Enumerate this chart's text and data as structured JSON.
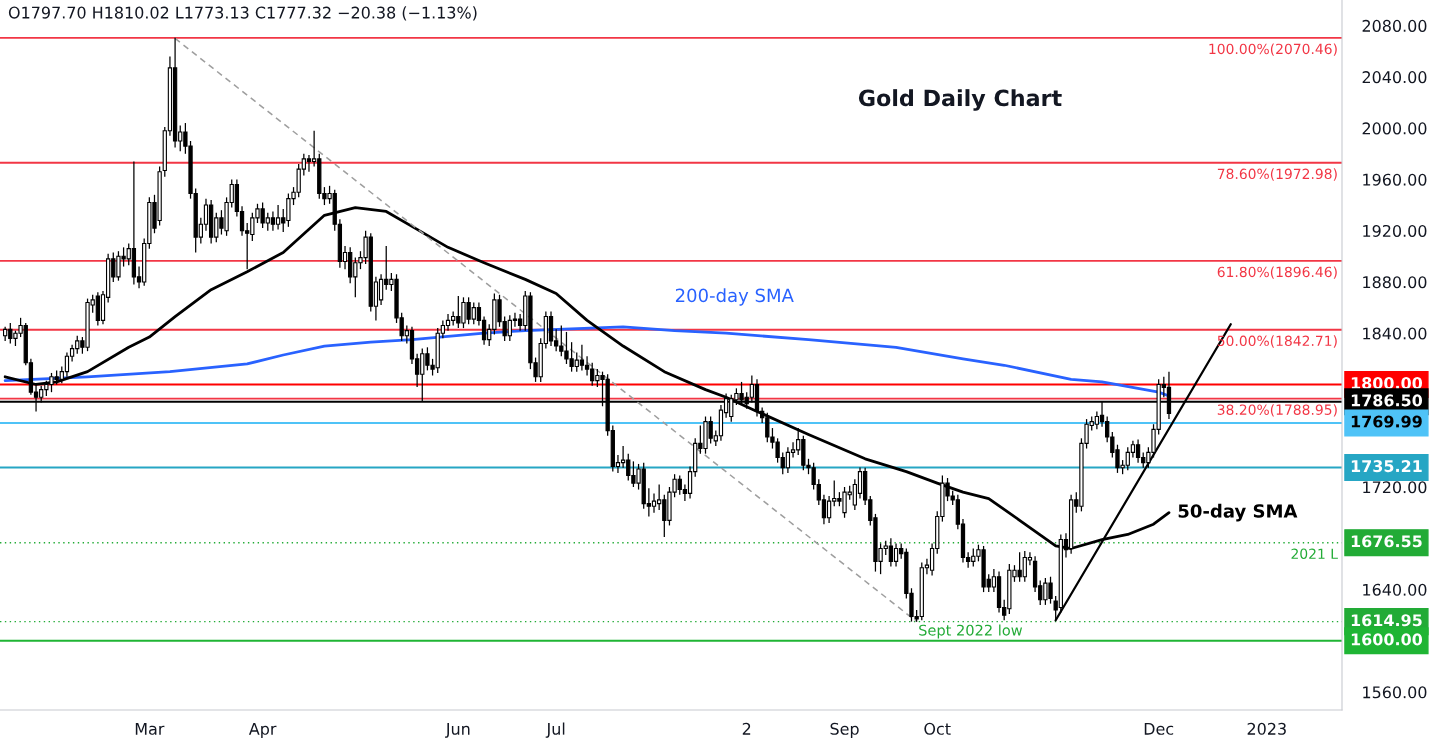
{
  "chart_data": {
    "type": "candlestick",
    "title": "Gold Daily Chart",
    "subtitle": "O1797.70 H1810.02 L1773.13 C1777.32 −20.38 (−1.13%)",
    "categories": [
      null,
      null,
      null,
      null,
      null,
      null,
      null,
      null,
      null,
      null,
      null,
      null,
      null,
      null,
      null,
      null,
      null,
      null,
      null,
      null,
      null,
      null,
      null,
      null,
      null,
      null,
      null,
      null,
      "Mar",
      null,
      null,
      null,
      null,
      null,
      null,
      null,
      null,
      null,
      null,
      null,
      null,
      null,
      null,
      null,
      null,
      null,
      null,
      null,
      null,
      null,
      "Apr",
      null,
      null,
      null,
      null,
      null,
      null,
      null,
      null,
      null,
      null,
      null,
      null,
      null,
      null,
      null,
      null,
      null,
      null,
      null,
      null,
      null,
      null,
      null,
      null,
      null,
      null,
      null,
      null,
      null,
      null,
      null,
      null,
      null,
      null,
      null,
      null,
      null,
      "Jun",
      null,
      null,
      null,
      null,
      null,
      null,
      null,
      null,
      null,
      null,
      null,
      null,
      null,
      null,
      null,
      null,
      null,
      null,
      "Jul",
      null,
      null,
      null,
      null,
      null,
      null,
      null,
      null,
      null,
      null,
      null,
      null,
      null,
      null,
      null,
      null,
      null,
      null,
      null,
      null,
      null,
      null,
      null,
      null,
      null,
      null,
      null,
      null,
      null,
      null,
      null,
      null,
      null,
      null,
      null,
      null,
      "2",
      null,
      null,
      null,
      null,
      null,
      null,
      null,
      null,
      null,
      null,
      null,
      null,
      null,
      null,
      null,
      null,
      null,
      null,
      "Sep",
      null,
      null,
      null,
      null,
      null,
      null,
      null,
      null,
      null,
      null,
      null,
      null,
      null,
      null,
      null,
      null,
      null,
      "Oct",
      null,
      null,
      null,
      null,
      null,
      null,
      null,
      null,
      null,
      null,
      null,
      null,
      null,
      null,
      null,
      null,
      null,
      null,
      null,
      null,
      null,
      null,
      null,
      null,
      null,
      null,
      null,
      null,
      null,
      null,
      null,
      null,
      null,
      null,
      null,
      null,
      null,
      null,
      null,
      null,
      null,
      null,
      "Dec",
      null,
      null,
      null,
      null,
      null,
      null,
      null,
      null,
      null,
      null,
      null,
      null,
      null,
      null,
      null,
      null,
      null,
      null,
      null,
      null,
      "2023",
      null,
      null,
      null,
      null,
      null,
      null,
      null,
      null,
      null,
      null,
      null,
      null,
      null,
      null
    ],
    "ohlc": [
      [
        1838,
        1845,
        1834,
        1843
      ],
      [
        1843,
        1848,
        1832,
        1836
      ],
      [
        1836,
        1842,
        1830,
        1840
      ],
      [
        1840,
        1852,
        1837,
        1846
      ],
      [
        1846,
        1848,
        1815,
        1817
      ],
      [
        1817,
        1820,
        1792,
        1794
      ],
      [
        1794,
        1800,
        1779,
        1790
      ],
      [
        1790,
        1799,
        1786,
        1796
      ],
      [
        1796,
        1803,
        1791,
        1800
      ],
      [
        1800,
        1809,
        1794,
        1806
      ],
      [
        1806,
        1811,
        1800,
        1804
      ],
      [
        1804,
        1814,
        1801,
        1810
      ],
      [
        1810,
        1825,
        1806,
        1822
      ],
      [
        1822,
        1831,
        1818,
        1828
      ],
      [
        1828,
        1838,
        1824,
        1834
      ],
      [
        1834,
        1837,
        1824,
        1829
      ],
      [
        1829,
        1867,
        1826,
        1864
      ],
      [
        1862,
        1870,
        1856,
        1866
      ],
      [
        1869,
        1872,
        1846,
        1850
      ],
      [
        1850,
        1873,
        1847,
        1870
      ],
      [
        1868,
        1902,
        1864,
        1898
      ],
      [
        1898,
        1903,
        1880,
        1884
      ],
      [
        1884,
        1904,
        1881,
        1900
      ],
      [
        1900,
        1907,
        1892,
        1898
      ],
      [
        1898,
        1910,
        1893,
        1906
      ],
      [
        1906,
        1974,
        1878,
        1884
      ],
      [
        1884,
        1892,
        1875,
        1880
      ],
      [
        1880,
        1914,
        1877,
        1910
      ],
      [
        1910,
        1946,
        1906,
        1942
      ],
      [
        1942,
        1948,
        1918,
        1922
      ],
      [
        1928,
        1970,
        1924,
        1966
      ],
      [
        1967,
        2001,
        1962,
        1998
      ],
      [
        1998,
        2056,
        1994,
        2047
      ],
      [
        2047,
        2070.46,
        1985,
        1990
      ],
      [
        1990,
        2002,
        1982,
        1997
      ],
      [
        1997,
        2004,
        1980,
        1986
      ],
      [
        1986,
        1990,
        1945,
        1949
      ],
      [
        1949,
        1953,
        1903,
        1915
      ],
      [
        1915,
        1930,
        1910,
        1925
      ],
      [
        1925,
        1945,
        1920,
        1940
      ],
      [
        1940,
        1944,
        1910,
        1915
      ],
      [
        1915,
        1934,
        1911,
        1930
      ],
      [
        1930,
        1936,
        1917,
        1922
      ],
      [
        1920,
        1946,
        1916,
        1942
      ],
      [
        1942,
        1960,
        1938,
        1956
      ],
      [
        1956,
        1960,
        1931,
        1935
      ],
      [
        1935,
        1939,
        1916,
        1920
      ],
      [
        1920,
        1926,
        1890,
        1918
      ],
      [
        1917,
        1934,
        1912,
        1930
      ],
      [
        1930,
        1941,
        1926,
        1937
      ],
      [
        1937,
        1942,
        1922,
        1926
      ],
      [
        1926,
        1934,
        1920,
        1930
      ],
      [
        1930,
        1935,
        1920,
        1925
      ],
      [
        1925,
        1940,
        1921,
        1930
      ],
      [
        1930,
        1937,
        1919,
        1926
      ],
      [
        1928,
        1949,
        1923,
        1945
      ],
      [
        1945,
        1954,
        1940,
        1950
      ],
      [
        1950,
        1972,
        1946,
        1968
      ],
      [
        1968,
        1980,
        1963,
        1976
      ],
      [
        1976,
        1979,
        1966,
        1974
      ],
      [
        1974,
        1998,
        1970,
        1976
      ],
      [
        1976,
        1980,
        1945,
        1949
      ],
      [
        1949,
        1954,
        1940,
        1945
      ],
      [
        1945,
        1955,
        1941,
        1949
      ],
      [
        1949,
        1952,
        1920,
        1925
      ],
      [
        1925,
        1929,
        1891,
        1896
      ],
      [
        1896,
        1908,
        1890,
        1903
      ],
      [
        1903,
        1907,
        1879,
        1884
      ],
      [
        1884,
        1899,
        1868,
        1895
      ],
      [
        1895,
        1904,
        1890,
        1899
      ],
      [
        1899,
        1920,
        1894,
        1915
      ],
      [
        1915,
        1918,
        1857,
        1861
      ],
      [
        1861,
        1884,
        1850,
        1880
      ],
      [
        1866,
        1886,
        1862,
        1882
      ],
      [
        1882,
        1908,
        1874,
        1878
      ],
      [
        1878,
        1887,
        1873,
        1882
      ],
      [
        1882,
        1886,
        1848,
        1852
      ],
      [
        1852,
        1856,
        1834,
        1838
      ],
      [
        1838,
        1846,
        1832,
        1842
      ],
      [
        1842,
        1845,
        1816,
        1820
      ],
      [
        1820,
        1824,
        1798,
        1808
      ],
      [
        1808,
        1828,
        1787,
        1824
      ],
      [
        1824,
        1829,
        1811,
        1815
      ],
      [
        1815,
        1820,
        1807,
        1812
      ],
      [
        1813,
        1844,
        1809,
        1840
      ],
      [
        1840,
        1850,
        1836,
        1846
      ],
      [
        1846,
        1855,
        1842,
        1850
      ],
      [
        1850,
        1857,
        1846,
        1853
      ],
      [
        1853,
        1869,
        1844,
        1848
      ],
      [
        1848,
        1868,
        1844,
        1864
      ],
      [
        1864,
        1868,
        1847,
        1851
      ],
      [
        1851,
        1864,
        1847,
        1860
      ],
      [
        1860,
        1864,
        1846,
        1850
      ],
      [
        1850,
        1853,
        1831,
        1835
      ],
      [
        1835,
        1847,
        1830,
        1843
      ],
      [
        1843,
        1871,
        1839,
        1866
      ],
      [
        1866,
        1870,
        1845,
        1849
      ],
      [
        1849,
        1853,
        1834,
        1838
      ],
      [
        1838,
        1854,
        1834,
        1850
      ],
      [
        1850,
        1856,
        1845,
        1851
      ],
      [
        1851,
        1855,
        1842,
        1846
      ],
      [
        1846,
        1873,
        1842,
        1869
      ],
      [
        1869,
        1872,
        1812,
        1817
      ],
      [
        1817,
        1821,
        1802,
        1806
      ],
      [
        1806,
        1836,
        1802,
        1832
      ],
      [
        1832,
        1857,
        1828,
        1853
      ],
      [
        1853,
        1857,
        1830,
        1834
      ],
      [
        1834,
        1843,
        1826,
        1830
      ],
      [
        1830,
        1846,
        1822,
        1826
      ],
      [
        1826,
        1841,
        1816,
        1820
      ],
      [
        1820,
        1833,
        1810,
        1814
      ],
      [
        1814,
        1825,
        1810,
        1819
      ],
      [
        1819,
        1831,
        1811,
        1815
      ],
      [
        1815,
        1822,
        1807,
        1812
      ],
      [
        1812,
        1817,
        1799,
        1803
      ],
      [
        1803,
        1812,
        1798,
        1807
      ],
      [
        1807,
        1810,
        1783,
        1804
      ],
      [
        1804,
        1808,
        1760,
        1764
      ],
      [
        1764,
        1768,
        1732,
        1736
      ],
      [
        1736,
        1745,
        1731,
        1739
      ],
      [
        1739,
        1752,
        1735,
        1741
      ],
      [
        1741,
        1746,
        1725,
        1729
      ],
      [
        1729,
        1740,
        1720,
        1723
      ],
      [
        1723,
        1738,
        1718,
        1734
      ],
      [
        1734,
        1739,
        1703,
        1707
      ],
      [
        1707,
        1719,
        1697,
        1705
      ],
      [
        1705,
        1715,
        1700,
        1709
      ],
      [
        1707,
        1722,
        1702,
        1710
      ],
      [
        1710,
        1714,
        1681,
        1694
      ],
      [
        1694,
        1720,
        1690,
        1716
      ],
      [
        1716,
        1730,
        1712,
        1726
      ],
      [
        1726,
        1729,
        1714,
        1718
      ],
      [
        1718,
        1722,
        1709,
        1715
      ],
      [
        1715,
        1736,
        1711,
        1732
      ],
      [
        1732,
        1758,
        1728,
        1754
      ],
      [
        1754,
        1768,
        1746,
        1750
      ],
      [
        1750,
        1775,
        1746,
        1771
      ],
      [
        1771,
        1775,
        1754,
        1758
      ],
      [
        1756,
        1764,
        1752,
        1760
      ],
      [
        1760,
        1784,
        1756,
        1780
      ],
      [
        1778,
        1793,
        1774,
        1789
      ],
      [
        1775,
        1792,
        1771,
        1789
      ],
      [
        1788,
        1797,
        1784,
        1793
      ],
      [
        1793,
        1802,
        1784,
        1788
      ],
      [
        1790,
        1794,
        1781,
        1785
      ],
      [
        1790,
        1807,
        1786,
        1800
      ],
      [
        1800,
        1804,
        1775,
        1779
      ],
      [
        1779,
        1782,
        1770,
        1774
      ],
      [
        1774,
        1778,
        1755,
        1759
      ],
      [
        1759,
        1766,
        1750,
        1755
      ],
      [
        1755,
        1758,
        1739,
        1743
      ],
      [
        1743,
        1747,
        1730,
        1735
      ],
      [
        1735,
        1751,
        1731,
        1747
      ],
      [
        1747,
        1755,
        1743,
        1749
      ],
      [
        1749,
        1766,
        1745,
        1757
      ],
      [
        1757,
        1760,
        1733,
        1737
      ],
      [
        1737,
        1742,
        1730,
        1735
      ],
      [
        1735,
        1739,
        1718,
        1722
      ],
      [
        1722,
        1726,
        1706,
        1710
      ],
      [
        1710,
        1714,
        1691,
        1696
      ],
      [
        1696,
        1713,
        1692,
        1709
      ],
      [
        1709,
        1725,
        1705,
        1711
      ],
      [
        1711,
        1716,
        1705,
        1709
      ],
      [
        1700,
        1720,
        1696,
        1716
      ],
      [
        1714,
        1721,
        1710,
        1716
      ],
      [
        1706,
        1726,
        1702,
        1722
      ],
      [
        1715,
        1735.21,
        1711,
        1732
      ],
      [
        1732,
        1735,
        1706,
        1710
      ],
      [
        1710,
        1713,
        1690,
        1694
      ],
      [
        1696,
        1699,
        1654,
        1662
      ],
      [
        1662,
        1676,
        1652,
        1672
      ],
      [
        1672,
        1678,
        1667,
        1674
      ],
      [
        1674,
        1680,
        1658,
        1662
      ],
      [
        1662,
        1676,
        1658,
        1672
      ],
      [
        1672,
        1676,
        1664,
        1668
      ],
      [
        1669,
        1672,
        1633,
        1637
      ],
      [
        1637,
        1641,
        1615,
        1619
      ],
      [
        1619,
        1624,
        1614.95,
        1617
      ],
      [
        1619,
        1661,
        1616,
        1657
      ],
      [
        1657,
        1664,
        1652,
        1659
      ],
      [
        1655,
        1676,
        1651,
        1672
      ],
      [
        1672,
        1701,
        1668,
        1697
      ],
      [
        1697,
        1729,
        1693,
        1723
      ],
      [
        1723,
        1727,
        1709,
        1713
      ],
      [
        1713,
        1717,
        1706,
        1710
      ],
      [
        1710,
        1714,
        1687,
        1691
      ],
      [
        1691,
        1695,
        1661,
        1665
      ],
      [
        1665,
        1669,
        1657,
        1662
      ],
      [
        1662,
        1672,
        1658,
        1666
      ],
      [
        1666,
        1675,
        1662,
        1671
      ],
      [
        1671,
        1674,
        1638,
        1642
      ],
      [
        1648,
        1652,
        1638,
        1642
      ],
      [
        1642,
        1656,
        1638,
        1650
      ],
      [
        1650,
        1654,
        1622,
        1626
      ],
      [
        1626,
        1632,
        1616,
        1620
      ],
      [
        1625,
        1660,
        1621,
        1655
      ],
      [
        1650,
        1659,
        1646,
        1655
      ],
      [
        1655,
        1669,
        1646,
        1650
      ],
      [
        1650,
        1670,
        1646,
        1665
      ],
      [
        1663,
        1669,
        1659,
        1665
      ],
      [
        1662,
        1666,
        1638,
        1642
      ],
      [
        1643,
        1647,
        1628,
        1632
      ],
      [
        1632,
        1649,
        1628,
        1645
      ],
      [
        1645,
        1650,
        1629,
        1633
      ],
      [
        1631,
        1635,
        1617,
        1624
      ],
      [
        1626,
        1683,
        1622,
        1679
      ],
      [
        1679,
        1684,
        1665,
        1671
      ],
      [
        1672,
        1714,
        1668,
        1710
      ],
      [
        1710,
        1716,
        1700,
        1705
      ],
      [
        1705,
        1758,
        1701,
        1754
      ],
      [
        1754,
        1773,
        1750,
        1769
      ],
      [
        1768,
        1775,
        1764,
        1771
      ],
      [
        1769,
        1779,
        1765,
        1775
      ],
      [
        1776,
        1786.5,
        1767,
        1771
      ],
      [
        1771,
        1775,
        1755,
        1759
      ],
      [
        1759,
        1763,
        1743,
        1747
      ],
      [
        1749,
        1753,
        1731,
        1735
      ],
      [
        1735,
        1741,
        1730,
        1737
      ],
      [
        1737,
        1751,
        1733,
        1747
      ],
      [
        1747,
        1756,
        1743,
        1753
      ],
      [
        1753,
        1757,
        1739,
        1743
      ],
      [
        1743,
        1747,
        1735,
        1739
      ],
      [
        1739,
        1751,
        1735,
        1747
      ],
      [
        1747,
        1769,
        1743,
        1765
      ],
      [
        1765,
        1804,
        1761,
        1800
      ],
      [
        1800,
        1806,
        1790,
        1797.7
      ],
      [
        1797.7,
        1810.02,
        1773.13,
        1777.32
      ],
      null,
      null,
      null,
      null,
      null,
      null,
      null,
      null,
      null,
      null,
      null,
      null,
      null,
      null,
      null,
      null,
      null,
      null,
      null,
      null,
      null,
      null,
      null,
      null,
      null,
      null,
      null,
      null,
      null,
      null,
      null,
      null,
      null
    ],
    "series": [
      {
        "type": "line",
        "name": "200-day SMA",
        "color": "#2962ff",
        "values": [
          1803,
          null,
          null,
          null,
          null,
          null,
          null,
          null,
          null,
          null,
          null,
          null,
          null,
          null,
          null,
          null,
          1806,
          null,
          null,
          null,
          null,
          null,
          null,
          null,
          null,
          null,
          null,
          null,
          null,
          null,
          null,
          null,
          1810,
          null,
          null,
          null,
          null,
          null,
          null,
          null,
          null,
          null,
          null,
          null,
          null,
          null,
          null,
          1816,
          null,
          null,
          null,
          null,
          null,
          null,
          1823,
          null,
          null,
          null,
          null,
          null,
          null,
          null,
          1830,
          null,
          null,
          null,
          null,
          null,
          null,
          null,
          null,
          1833,
          null,
          null,
          null,
          null,
          null,
          null,
          null,
          1835,
          null,
          null,
          null,
          null,
          null,
          null,
          null,
          null,
          null,
          null,
          null,
          null,
          null,
          1840,
          null,
          null,
          null,
          null,
          null,
          null,
          null,
          1842,
          null,
          null,
          null,
          null,
          null,
          null,
          null,
          null,
          null,
          null,
          null,
          null,
          null,
          null,
          null,
          null,
          null,
          null,
          1845,
          null,
          null,
          null,
          null,
          null,
          null,
          null,
          null,
          null,
          1842,
          null,
          null,
          null,
          null,
          null,
          null,
          null,
          null,
          null,
          1840,
          null,
          null,
          null,
          null,
          null,
          null,
          null,
          null,
          null,
          null,
          null,
          null,
          null,
          null,
          null,
          1835,
          null,
          null,
          null,
          null,
          null,
          null,
          null,
          null,
          null,
          null,
          null,
          null,
          null,
          null,
          null,
          null,
          1829,
          null,
          null,
          null,
          null,
          null,
          null,
          null,
          null,
          null,
          null,
          null,
          null,
          1820,
          null,
          null,
          null,
          null,
          null,
          null,
          null,
          1815,
          null,
          null,
          null,
          null,
          null,
          null,
          null,
          null,
          null,
          null,
          null,
          null,
          1804,
          null,
          null,
          null,
          null,
          null,
          1802,
          null,
          null,
          null,
          null,
          null,
          null,
          null,
          null,
          null,
          null,
          1794,
          null,
          1791,
          null,
          null,
          null,
          null,
          null,
          null,
          null,
          null,
          null,
          null,
          null,
          null,
          null,
          null,
          null,
          null,
          null,
          null,
          null,
          null,
          null,
          null,
          null,
          null,
          null,
          null,
          null,
          null,
          null,
          null,
          null,
          null,
          null
        ]
      },
      {
        "type": "line",
        "name": "50-day SMA",
        "color": "#000000",
        "values": [
          1806,
          null,
          null,
          null,
          null,
          null,
          1800,
          null,
          null,
          null,
          1802,
          null,
          null,
          null,
          null,
          null,
          1810,
          null,
          null,
          null,
          null,
          null,
          null,
          null,
          1829,
          null,
          null,
          null,
          1837,
          null,
          null,
          null,
          null,
          1853,
          null,
          null,
          null,
          null,
          null,
          null,
          1874,
          null,
          null,
          null,
          null,
          null,
          null,
          1888,
          null,
          null,
          null,
          null,
          null,
          null,
          1903,
          null,
          null,
          null,
          null,
          null,
          null,
          null,
          1932,
          null,
          null,
          null,
          null,
          null,
          1938,
          null,
          null,
          null,
          null,
          null,
          1935,
          null,
          null,
          null,
          null,
          null,
          1921,
          null,
          null,
          null,
          null,
          null,
          1907,
          null,
          null,
          null,
          null,
          null,
          null,
          1895,
          null,
          null,
          null,
          null,
          null,
          null,
          null,
          1882,
          null,
          null,
          null,
          null,
          null,
          1871,
          null,
          null,
          null,
          null,
          null,
          1850,
          null,
          null,
          null,
          null,
          null,
          null,
          1830,
          null,
          null,
          null,
          null,
          null,
          null,
          null,
          1810,
          null,
          null,
          null,
          null,
          null,
          null,
          null,
          1796,
          null,
          null,
          null,
          1790,
          null,
          null,
          null,
          null,
          null,
          1779,
          null,
          null,
          null,
          null,
          null,
          null,
          null,
          null,
          null,
          1761,
          null,
          null,
          null,
          null,
          null,
          null,
          null,
          null,
          null,
          null,
          1742,
          null,
          null,
          null,
          null,
          null,
          null,
          null,
          1732,
          null,
          null,
          null,
          null,
          null,
          1723,
          null,
          null,
          null,
          null,
          1716,
          null,
          null,
          null,
          null,
          1711,
          null,
          null,
          null,
          null,
          null,
          1694,
          null,
          null,
          null,
          null,
          null,
          null,
          1674,
          null,
          null,
          1672,
          null,
          null,
          null,
          null,
          null,
          1679,
          null,
          null,
          null,
          null,
          1683,
          null,
          null,
          null,
          null,
          1691,
          null,
          null,
          1700,
          null,
          null,
          null,
          null,
          null,
          null,
          null,
          null,
          null,
          null,
          null,
          null,
          null,
          null,
          null,
          null,
          null,
          null,
          null,
          null,
          null,
          null,
          null,
          null,
          null,
          null,
          null,
          null,
          null,
          null,
          null,
          null,
          null
        ]
      },
      {
        "type": "line",
        "color": "#9e9e9e",
        "line_style": "dashed",
        "values": [
          null,
          null,
          null,
          null,
          null,
          null,
          null,
          null,
          null,
          null,
          null,
          null,
          null,
          null,
          null,
          null,
          null,
          null,
          null,
          null,
          null,
          null,
          null,
          null,
          null,
          null,
          null,
          null,
          null,
          null,
          null,
          null,
          null,
          2070,
          null,
          null,
          null,
          null,
          null,
          null,
          null,
          null,
          null,
          null,
          null,
          null,
          null,
          null,
          null,
          null,
          null,
          null,
          null,
          null,
          null,
          null,
          null,
          null,
          null,
          null,
          null,
          null,
          null,
          null,
          null,
          null,
          null,
          null,
          null,
          null,
          null,
          null,
          null,
          null,
          null,
          null,
          null,
          null,
          null,
          null,
          null,
          null,
          null,
          null,
          null,
          null,
          null,
          null,
          null,
          null,
          null,
          null,
          null,
          null,
          null,
          null,
          null,
          null,
          null,
          null,
          null,
          null,
          null,
          null,
          null,
          null,
          null,
          null,
          null,
          null,
          null,
          null,
          null,
          null,
          null,
          null,
          null,
          null,
          null,
          null,
          null,
          null,
          null,
          null,
          null,
          null,
          null,
          null,
          null,
          null,
          null,
          null,
          null,
          null,
          null,
          null,
          null,
          null,
          null,
          null,
          null,
          null,
          null,
          null,
          null,
          null,
          null,
          null,
          null,
          null,
          null,
          null,
          null,
          null,
          null,
          null,
          null,
          null,
          null,
          null,
          null,
          null,
          null,
          null,
          null,
          null,
          null,
          null,
          null,
          null,
          null,
          null,
          null,
          null,
          null,
          null,
          null,
          1615,
          null,
          null,
          null,
          null,
          null,
          null,
          null,
          null,
          null,
          null,
          null,
          null,
          null,
          null,
          null,
          null,
          null,
          null,
          null,
          null,
          null,
          null,
          null,
          null,
          null,
          null,
          null,
          null,
          null,
          null,
          null,
          null,
          null,
          null,
          null,
          null,
          null,
          null,
          null,
          null,
          null,
          null,
          null,
          null,
          null,
          null,
          null,
          null,
          null,
          null,
          null,
          null,
          null,
          null,
          null,
          null,
          null,
          null,
          null,
          null,
          null,
          null,
          null,
          null,
          null,
          null,
          null,
          null,
          null,
          null,
          null,
          null,
          null,
          null,
          null,
          null,
          null,
          null,
          null,
          null,
          null,
          null
        ]
      },
      {
        "type": "line",
        "color": "#000000",
        "values": [
          null,
          null,
          null,
          null,
          null,
          null,
          null,
          null,
          null,
          null,
          null,
          null,
          null,
          null,
          null,
          null,
          null,
          null,
          null,
          null,
          null,
          null,
          null,
          null,
          null,
          null,
          null,
          null,
          null,
          null,
          null,
          null,
          null,
          null,
          null,
          null,
          null,
          null,
          null,
          null,
          null,
          null,
          null,
          null,
          null,
          null,
          null,
          null,
          null,
          null,
          null,
          null,
          null,
          null,
          null,
          null,
          null,
          null,
          null,
          null,
          null,
          null,
          null,
          null,
          null,
          null,
          null,
          null,
          null,
          null,
          null,
          null,
          null,
          null,
          null,
          null,
          null,
          null,
          null,
          null,
          null,
          null,
          null,
          null,
          null,
          null,
          null,
          null,
          null,
          null,
          null,
          null,
          null,
          null,
          null,
          null,
          null,
          null,
          null,
          null,
          null,
          null,
          null,
          null,
          null,
          null,
          null,
          null,
          null,
          null,
          null,
          null,
          null,
          null,
          null,
          null,
          null,
          null,
          null,
          null,
          null,
          null,
          null,
          null,
          null,
          null,
          null,
          null,
          null,
          null,
          null,
          null,
          null,
          null,
          null,
          null,
          null,
          null,
          null,
          null,
          null,
          null,
          null,
          null,
          null,
          null,
          null,
          null,
          null,
          null,
          null,
          null,
          null,
          null,
          null,
          null,
          null,
          null,
          null,
          null,
          null,
          null,
          null,
          null,
          null,
          null,
          null,
          null,
          null,
          null,
          null,
          null,
          null,
          null,
          null,
          null,
          null,
          null,
          null,
          null,
          null,
          null,
          null,
          null,
          null,
          null,
          null,
          null,
          null,
          null,
          null,
          null,
          null,
          null,
          null,
          null,
          null,
          null,
          null,
          null,
          null,
          null,
          null,
          null,
          1616,
          null,
          null,
          null,
          null,
          null,
          null,
          null,
          null,
          null,
          null,
          null,
          null,
          null,
          null,
          null,
          null,
          null,
          null,
          null,
          null,
          null,
          null,
          null,
          null,
          null,
          null,
          null,
          null,
          null,
          null,
          null,
          null,
          null,
          1847,
          null,
          null,
          null,
          null,
          null,
          null,
          null,
          null,
          null,
          null,
          null,
          null,
          null,
          null,
          null,
          null,
          null,
          null,
          null,
          null,
          null
        ]
      }
    ],
    "ref_lines": [
      {
        "axis": "y",
        "value": 2070.46,
        "color": "#f23645"
      },
      {
        "axis": "y",
        "value": 1972.98,
        "color": "#f23645"
      },
      {
        "axis": "y",
        "value": 1896.46,
        "color": "#f23645"
      },
      {
        "axis": "y",
        "value": 1842.71,
        "color": "#f23645"
      },
      {
        "axis": "y",
        "value": 1788.95,
        "color": "#f23645"
      },
      {
        "axis": "y",
        "value": 1800,
        "label": "1800.00",
        "color": "#ff0000"
      },
      {
        "axis": "y",
        "value": 1786.5,
        "label": "1786.50",
        "color": "#000000"
      },
      {
        "axis": "y",
        "value": 1769.99,
        "label": "1769.99",
        "color": "#4fc3f7"
      },
      {
        "axis": "y",
        "value": 1735.21,
        "label": "1735.21",
        "color": "#26a6c4"
      },
      {
        "axis": "y",
        "value": 1676.55,
        "label": "1676.55",
        "color": "#22ab36",
        "line_style": "dotted"
      },
      {
        "axis": "y",
        "value": 1614.95,
        "label": "1614.95",
        "color": "#22ab36",
        "line_style": "dotted"
      },
      {
        "axis": "y",
        "value": 1600,
        "label": "1600.00",
        "color": "#1fb534"
      }
    ],
    "annotations": [
      {
        "text": "100.00%(2070.46)",
        "y": 2070.46
      },
      {
        "text": "78.60%(1972.98)",
        "y": 1972.98
      },
      {
        "text": "61.80%(1896.46)",
        "y": 1896.46
      },
      {
        "text": "50.00%(1842.71)",
        "y": 1842.71
      },
      {
        "text": "38.20%(1788.95)",
        "y": 1788.95
      },
      {
        "text": "2021 L",
        "y": 1676.55
      },
      {
        "text": "Sept 2022 low",
        "y": 1614.95
      }
    ],
    "ylim": [
      1546,
      2100
    ],
    "yticks": [
      {
        "value": 1560,
        "label": "1560.00"
      },
      {
        "value": 1600,
        "label": null
      },
      {
        "value": 1640,
        "label": "1640.00"
      },
      {
        "value": 1720,
        "label": "1720.00"
      },
      {
        "value": 1800,
        "label": null
      },
      {
        "value": 1840,
        "label": "1840.00"
      },
      {
        "value": 1880,
        "label": "1880.00"
      },
      {
        "value": 1920,
        "label": "1920.00"
      },
      {
        "value": 1960,
        "label": "1960.00"
      },
      {
        "value": 2000,
        "label": "2000.00"
      },
      {
        "value": 2040,
        "label": "2040.00"
      },
      {
        "value": 2080,
        "label": "2080.00"
      }
    ]
  }
}
